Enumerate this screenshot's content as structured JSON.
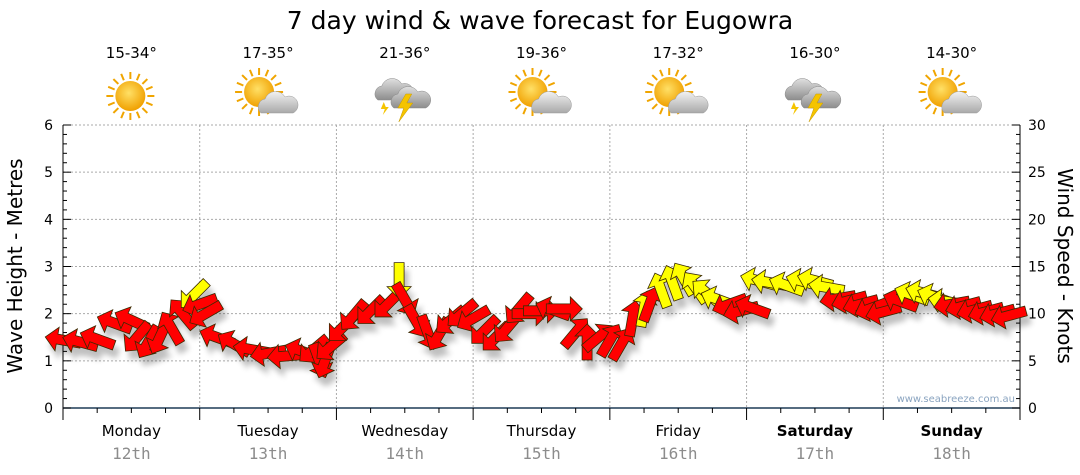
{
  "chart_data": {
    "type": "scatter",
    "title": "7 day wind & wave forecast for Eugowra",
    "ylabel": "Wave Height - Metres",
    "y2label": "Wind Speed - Knots",
    "ylim": [
      0,
      6
    ],
    "y2lim": [
      0,
      30
    ],
    "yticks": [
      "0",
      "1",
      "2",
      "3",
      "4",
      "5",
      "6"
    ],
    "y2ticks": [
      "0",
      "5",
      "10",
      "15",
      "20",
      "25",
      "30"
    ],
    "grid": true,
    "watermark": "www.seabreeze.com.au",
    "days": [
      {
        "name": "Monday",
        "date": "12th",
        "temp": "15-34°",
        "icon": "sunny",
        "bold": false
      },
      {
        "name": "Tuesday",
        "date": "13th",
        "temp": "17-35°",
        "icon": "partly-cloudy",
        "bold": false
      },
      {
        "name": "Wednesday",
        "date": "14th",
        "temp": "21-36°",
        "icon": "storm",
        "bold": false
      },
      {
        "name": "Thursday",
        "date": "15th",
        "temp": "19-36°",
        "icon": "partly-cloudy",
        "bold": false
      },
      {
        "name": "Friday",
        "date": "16th",
        "temp": "17-32°",
        "icon": "partly-cloudy",
        "bold": false
      },
      {
        "name": "Saturday",
        "date": "17th",
        "temp": "16-30°",
        "icon": "storm",
        "bold": true
      },
      {
        "name": "Sunday",
        "date": "18th",
        "temp": "14-30°",
        "icon": "partly-cloudy",
        "bold": true
      }
    ],
    "colors": {
      "red": "#ff0000",
      "yellow": "#ffff00",
      "axis": "#1f3b57"
    },
    "wind_series": {
      "name": "Wind",
      "units": "knots",
      "points_hour_speed_direction_color": [
        [
          0,
          7.2,
          190,
          "red"
        ],
        [
          3,
          7,
          195,
          "red"
        ],
        [
          6,
          7.3,
          200,
          "red"
        ],
        [
          9,
          9,
          200,
          "red"
        ],
        [
          12,
          9.3,
          205,
          "red"
        ],
        [
          13,
          7.5,
          130,
          "red"
        ],
        [
          15,
          7,
          120,
          "red"
        ],
        [
          17,
          7.5,
          115,
          "red"
        ],
        [
          19,
          8.5,
          240,
          "red"
        ],
        [
          21,
          10,
          230,
          "red"
        ],
        [
          23,
          12,
          135,
          "yellow"
        ],
        [
          24,
          11,
          160,
          "red"
        ],
        [
          25,
          10,
          150,
          "red"
        ],
        [
          27,
          7.5,
          200,
          "red"
        ],
        [
          30,
          6.8,
          210,
          "red"
        ],
        [
          33,
          6.2,
          190,
          "red"
        ],
        [
          36,
          5.8,
          170,
          "red"
        ],
        [
          39,
          5.5,
          175,
          "red"
        ],
        [
          42,
          6,
          200,
          "red"
        ],
        [
          44,
          6.2,
          140,
          "red"
        ],
        [
          45,
          5,
          70,
          "red"
        ],
        [
          46,
          5,
          110,
          "red"
        ],
        [
          47,
          6.5,
          140,
          "red"
        ],
        [
          49,
          8.5,
          135,
          "red"
        ],
        [
          51,
          9.8,
          130,
          "red"
        ],
        [
          54,
          10.3,
          135,
          "red"
        ],
        [
          57,
          11,
          135,
          "red"
        ],
        [
          59,
          13.5,
          90,
          "yellow"
        ],
        [
          60,
          11.5,
          60,
          "red"
        ],
        [
          62,
          9.2,
          60,
          "red"
        ],
        [
          64,
          8,
          70,
          "red"
        ],
        [
          66,
          7.8,
          120,
          "red"
        ],
        [
          68,
          9.3,
          140,
          "red"
        ],
        [
          70,
          10,
          140,
          "red"
        ],
        [
          72,
          9.5,
          150,
          "red"
        ],
        [
          74,
          8.2,
          135,
          "red"
        ],
        [
          76,
          7.5,
          135,
          "red"
        ],
        [
          78,
          8.5,
          130,
          "red"
        ],
        [
          80,
          10.5,
          130,
          "red"
        ],
        [
          82,
          10,
          0,
          "red"
        ],
        [
          84,
          10.3,
          0,
          "red"
        ],
        [
          86,
          10.4,
          200,
          "red"
        ],
        [
          88,
          10.5,
          0,
          "red"
        ],
        [
          90,
          8,
          310,
          "red"
        ],
        [
          92,
          7,
          270,
          "red"
        ],
        [
          94,
          7.5,
          320,
          "red"
        ],
        [
          96,
          7.2,
          300,
          "red"
        ],
        [
          98,
          6.8,
          300,
          "red"
        ],
        [
          100,
          9.5,
          280,
          "red"
        ],
        [
          102,
          10.5,
          280,
          "yellow"
        ],
        [
          103,
          11,
          290,
          "red"
        ],
        [
          105,
          12.5,
          250,
          "yellow"
        ],
        [
          107,
          13.3,
          250,
          "yellow"
        ],
        [
          109,
          13.7,
          240,
          "yellow"
        ],
        [
          111,
          12.8,
          235,
          "yellow"
        ],
        [
          113,
          12.2,
          220,
          "yellow"
        ],
        [
          115,
          11.5,
          200,
          "yellow"
        ],
        [
          117,
          11,
          160,
          "red"
        ],
        [
          119,
          10.3,
          165,
          "red"
        ],
        [
          121,
          10.6,
          200,
          "red"
        ],
        [
          122,
          13.5,
          195,
          "yellow"
        ],
        [
          124,
          13.3,
          190,
          "yellow"
        ],
        [
          127,
          13,
          200,
          "yellow"
        ],
        [
          130,
          13.4,
          195,
          "yellow"
        ],
        [
          132,
          13.5,
          195,
          "yellow"
        ],
        [
          134,
          12.8,
          190,
          "yellow"
        ],
        [
          136,
          11.6,
          170,
          "red"
        ],
        [
          138,
          11.4,
          165,
          "red"
        ],
        [
          140,
          11,
          165,
          "red"
        ],
        [
          142,
          10.6,
          160,
          "red"
        ],
        [
          144,
          10.2,
          165,
          "red"
        ],
        [
          147,
          11.3,
          200,
          "red"
        ],
        [
          149,
          12,
          200,
          "yellow"
        ],
        [
          151,
          12.2,
          195,
          "yellow"
        ],
        [
          153,
          11.8,
          200,
          "yellow"
        ],
        [
          155,
          11.3,
          190,
          "yellow"
        ],
        [
          156,
          11,
          170,
          "red"
        ],
        [
          158,
          10.8,
          165,
          "red"
        ],
        [
          160,
          10.4,
          165,
          "red"
        ],
        [
          162,
          10.2,
          165,
          "red"
        ],
        [
          164,
          10,
          165,
          "red"
        ],
        [
          166,
          9.8,
          165,
          "red"
        ]
      ]
    },
    "wave_series": {
      "name": "Wave Height",
      "units": "metres",
      "values": []
    }
  }
}
